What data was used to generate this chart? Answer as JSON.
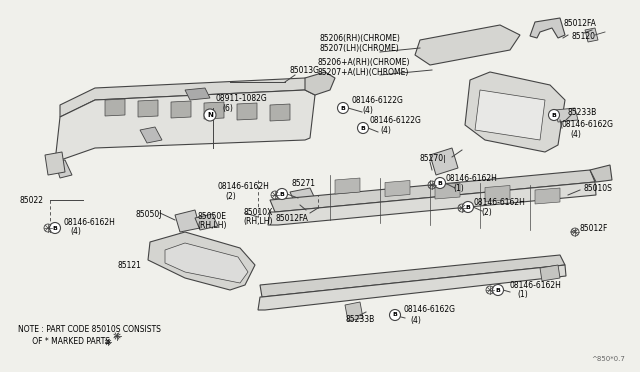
{
  "background_color": "#f0f0eb",
  "line_color": "#444444",
  "text_color": "#000000",
  "watermark": "^850*0.7",
  "note_line1": "NOTE : PART CODE 85010S CONSISTS",
  "note_line2": "      OF * MARKED PARTS"
}
